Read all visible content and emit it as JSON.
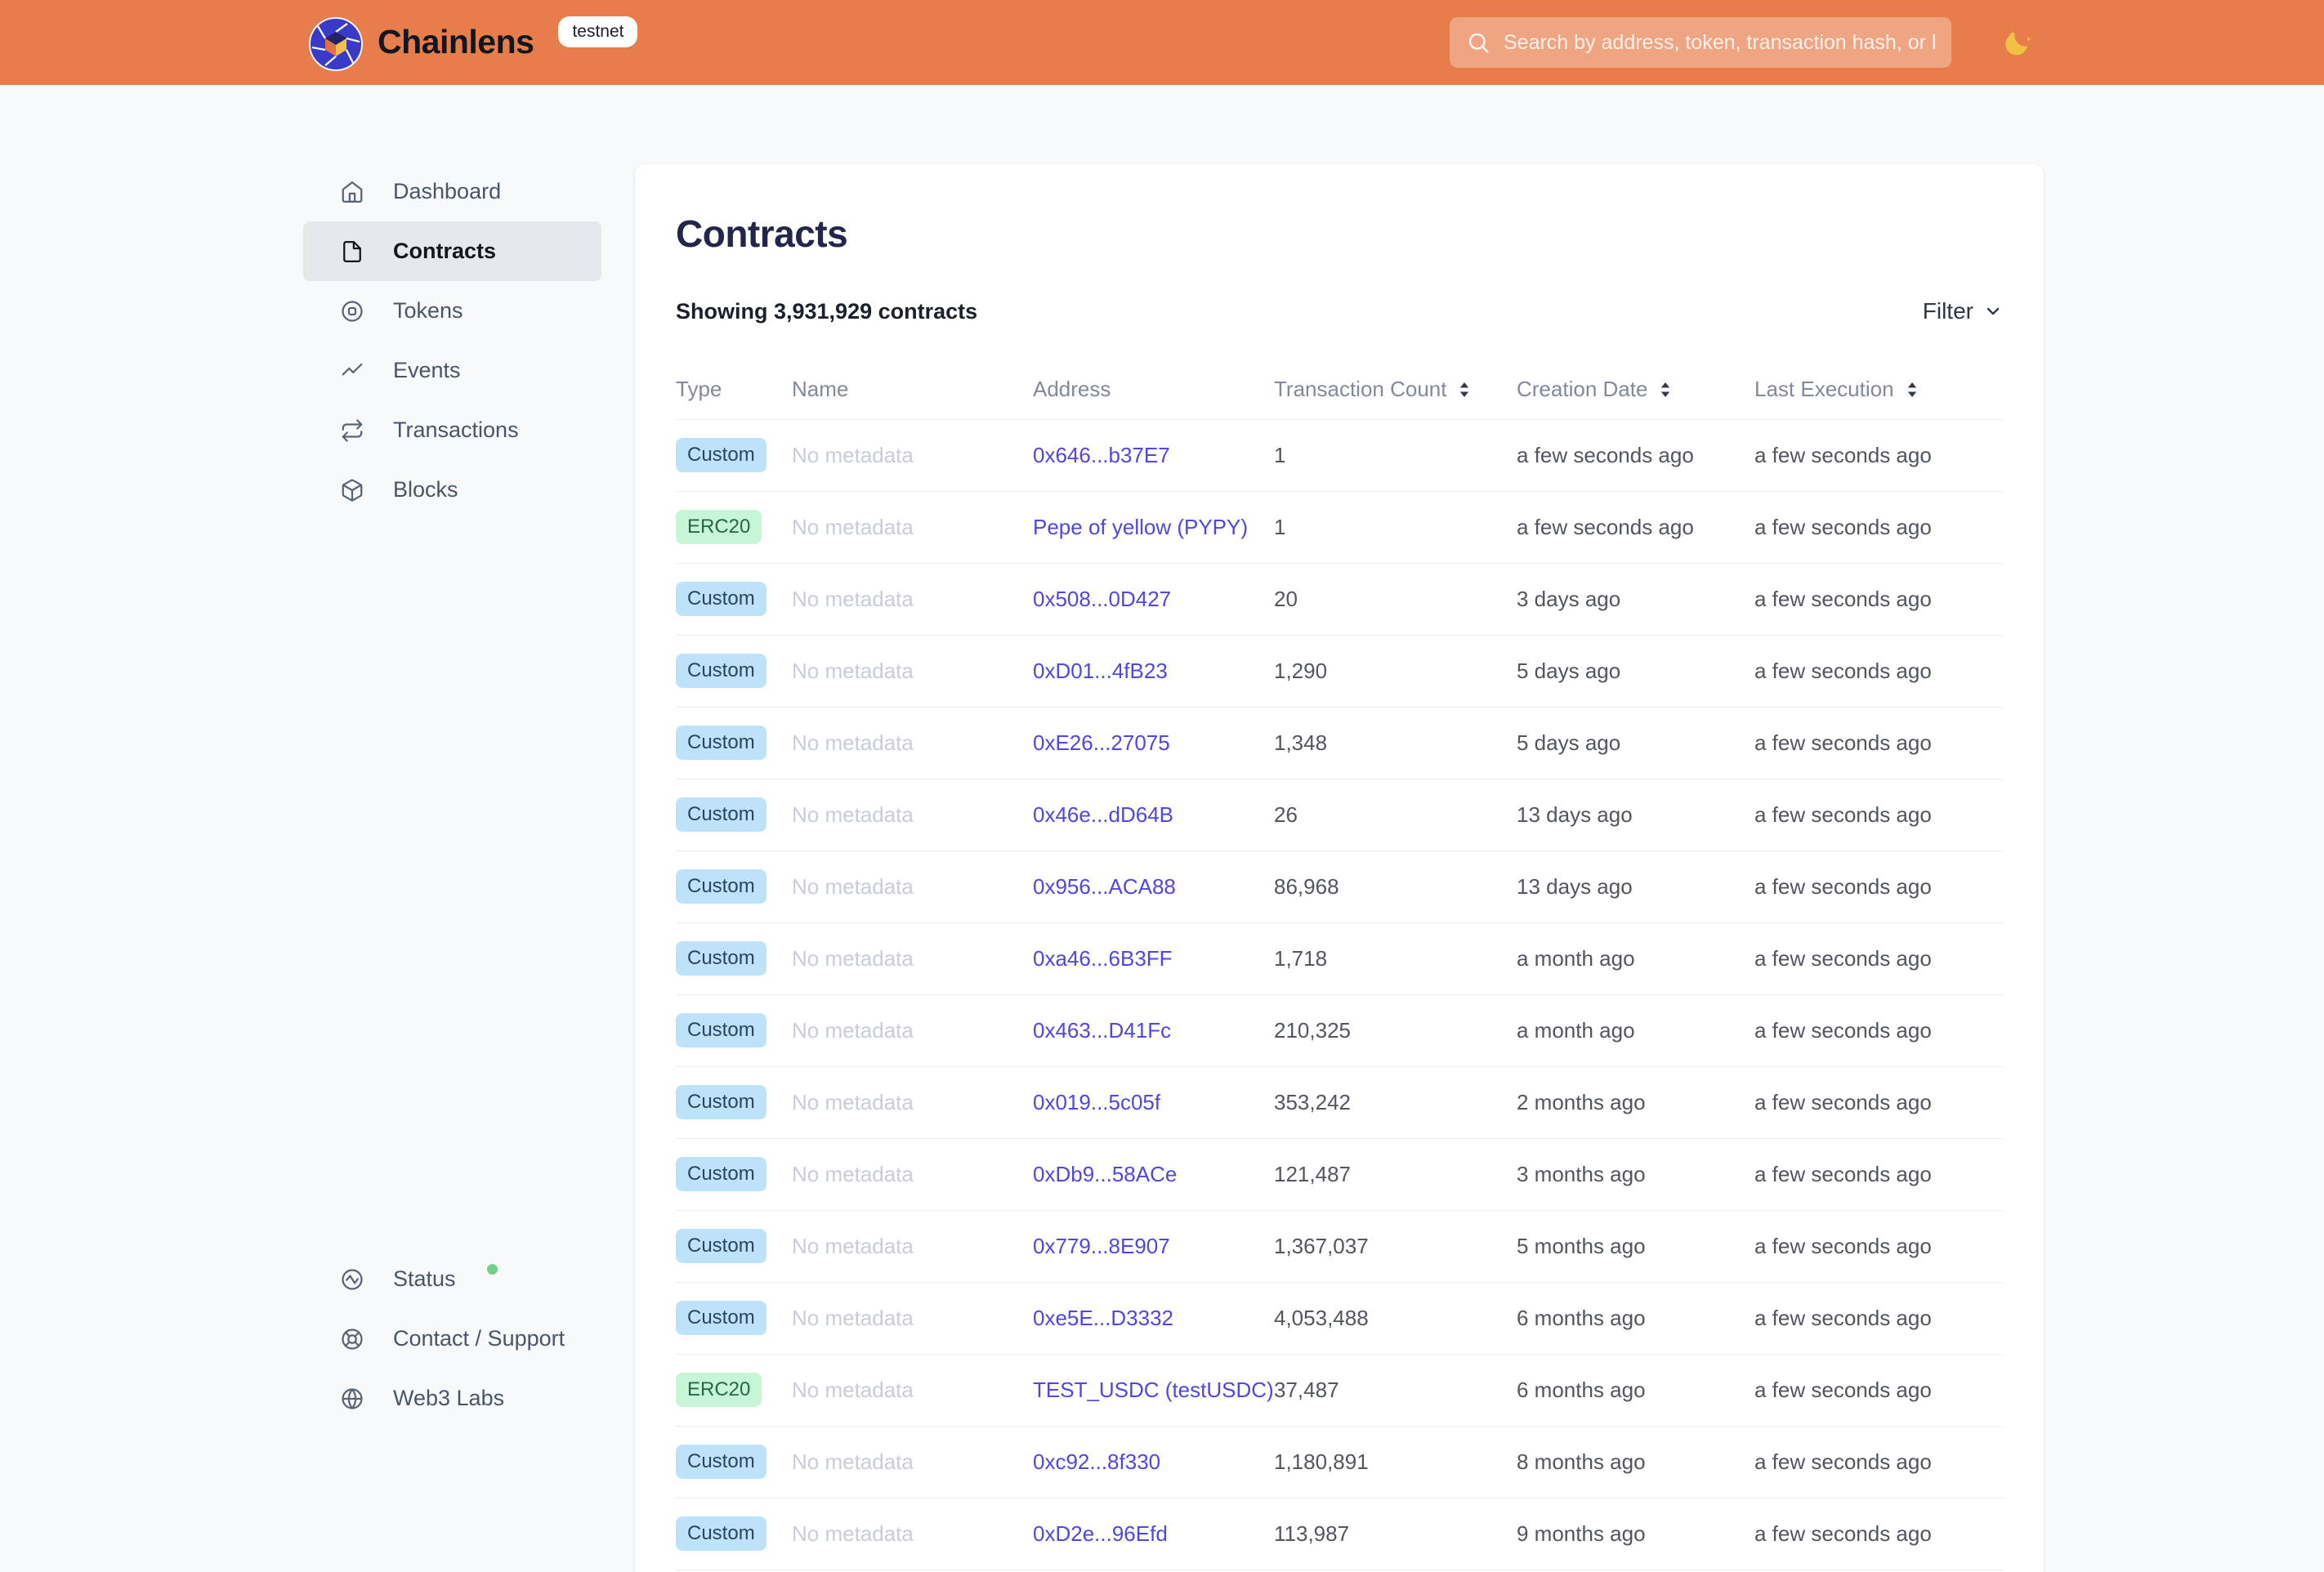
{
  "header": {
    "brand": "Chainlens",
    "env_badge": "testnet",
    "search_placeholder": "Search by address, token, transaction hash, or block number"
  },
  "sidebar": {
    "items": [
      {
        "id": "dashboard",
        "icon": "home-icon",
        "label": "Dashboard",
        "active": false
      },
      {
        "id": "contracts",
        "icon": "contract-icon",
        "label": "Contracts",
        "active": true
      },
      {
        "id": "tokens",
        "icon": "token-icon",
        "label": "Tokens",
        "active": false
      },
      {
        "id": "events",
        "icon": "events-icon",
        "label": "Events",
        "active": false
      },
      {
        "id": "transactions",
        "icon": "transactions-icon",
        "label": "Transactions",
        "active": false
      },
      {
        "id": "blocks",
        "icon": "block-icon",
        "label": "Blocks",
        "active": false
      }
    ],
    "footer_items": [
      {
        "id": "status",
        "icon": "status-icon",
        "label": "Status",
        "dot": true
      },
      {
        "id": "contact",
        "icon": "lifebuoy-icon",
        "label": "Contact / Support",
        "dot": false
      },
      {
        "id": "web3labs",
        "icon": "globe-icon",
        "label": "Web3 Labs",
        "dot": false
      }
    ]
  },
  "main": {
    "title": "Contracts",
    "summary": "Showing 3,931,929 contracts",
    "filter_label": "Filter",
    "table": {
      "columns": [
        {
          "label": "Type",
          "sortable": false
        },
        {
          "label": "Name",
          "sortable": false
        },
        {
          "label": "Address",
          "sortable": false
        },
        {
          "label": "Transaction Count",
          "sortable": true
        },
        {
          "label": "Creation Date",
          "sortable": true
        },
        {
          "label": "Last Execution",
          "sortable": true
        }
      ],
      "rows": [
        {
          "type": "Custom",
          "name": "No metadata",
          "address": "0x646...b37E7",
          "tx_count": "1",
          "creation": "a few seconds ago",
          "last_execution": "a few seconds ago"
        },
        {
          "type": "ERC20",
          "name": "No metadata",
          "address": "Pepe of yellow (PYPY)",
          "tx_count": "1",
          "creation": "a few seconds ago",
          "last_execution": "a few seconds ago"
        },
        {
          "type": "Custom",
          "name": "No metadata",
          "address": "0x508...0D427",
          "tx_count": "20",
          "creation": "3 days ago",
          "last_execution": "a few seconds ago"
        },
        {
          "type": "Custom",
          "name": "No metadata",
          "address": "0xD01...4fB23",
          "tx_count": "1,290",
          "creation": "5 days ago",
          "last_execution": "a few seconds ago"
        },
        {
          "type": "Custom",
          "name": "No metadata",
          "address": "0xE26...27075",
          "tx_count": "1,348",
          "creation": "5 days ago",
          "last_execution": "a few seconds ago"
        },
        {
          "type": "Custom",
          "name": "No metadata",
          "address": "0x46e...dD64B",
          "tx_count": "26",
          "creation": "13 days ago",
          "last_execution": "a few seconds ago"
        },
        {
          "type": "Custom",
          "name": "No metadata",
          "address": "0x956...ACA88",
          "tx_count": "86,968",
          "creation": "13 days ago",
          "last_execution": "a few seconds ago"
        },
        {
          "type": "Custom",
          "name": "No metadata",
          "address": "0xa46...6B3FF",
          "tx_count": "1,718",
          "creation": "a month ago",
          "last_execution": "a few seconds ago"
        },
        {
          "type": "Custom",
          "name": "No metadata",
          "address": "0x463...D41Fc",
          "tx_count": "210,325",
          "creation": "a month ago",
          "last_execution": "a few seconds ago"
        },
        {
          "type": "Custom",
          "name": "No metadata",
          "address": "0x019...5c05f",
          "tx_count": "353,242",
          "creation": "2 months ago",
          "last_execution": "a few seconds ago"
        },
        {
          "type": "Custom",
          "name": "No metadata",
          "address": "0xDb9...58ACe",
          "tx_count": "121,487",
          "creation": "3 months ago",
          "last_execution": "a few seconds ago"
        },
        {
          "type": "Custom",
          "name": "No metadata",
          "address": "0x779...8E907",
          "tx_count": "1,367,037",
          "creation": "5 months ago",
          "last_execution": "a few seconds ago"
        },
        {
          "type": "Custom",
          "name": "No metadata",
          "address": "0xe5E...D3332",
          "tx_count": "4,053,488",
          "creation": "6 months ago",
          "last_execution": "a few seconds ago"
        },
        {
          "type": "ERC20",
          "name": "No metadata",
          "address": "TEST_USDC (testUSDC)",
          "tx_count": "37,487",
          "creation": "6 months ago",
          "last_execution": "a few seconds ago"
        },
        {
          "type": "Custom",
          "name": "No metadata",
          "address": "0xc92...8f330",
          "tx_count": "1,180,891",
          "creation": "8 months ago",
          "last_execution": "a few seconds ago"
        },
        {
          "type": "Custom",
          "name": "No metadata",
          "address": "0xD2e...96Efd",
          "tx_count": "113,987",
          "creation": "9 months ago",
          "last_execution": "a few seconds ago"
        }
      ]
    }
  },
  "colors": {
    "header_orange": "#E87D4C",
    "link_indigo": "#4F46E5",
    "badge_custom_bg": "#BEE3F8",
    "badge_custom_text": "#2A4365",
    "badge_erc20_bg": "#C6F6D5",
    "badge_erc20_text": "#276749",
    "status_green": "#6FD08C",
    "title_navy": "#23254D"
  }
}
